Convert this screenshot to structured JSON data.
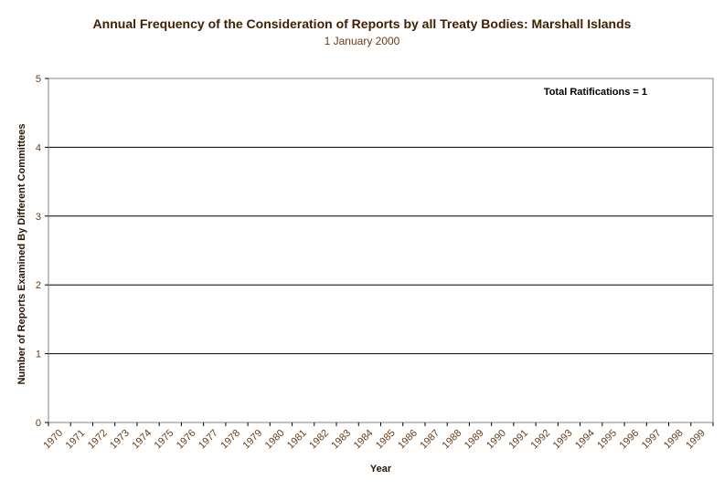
{
  "chart_data": {
    "type": "bar",
    "title": "Annual Frequency of the Consideration of Reports by all Treaty Bodies: Marshall Islands",
    "subtitle": "1 January 2000",
    "xlabel": "Year",
    "ylabel": "Number of Reports Examined By Different Committees",
    "categories": [
      "1970",
      "1971",
      "1972",
      "1973",
      "1974",
      "1975",
      "1976",
      "1977",
      "1978",
      "1979",
      "1980",
      "1981",
      "1982",
      "1983",
      "1984",
      "1985",
      "1986",
      "1987",
      "1988",
      "1989",
      "1990",
      "1991",
      "1992",
      "1993",
      "1994",
      "1995",
      "1996",
      "1997",
      "1998",
      "1999"
    ],
    "values": [
      0,
      0,
      0,
      0,
      0,
      0,
      0,
      0,
      0,
      0,
      0,
      0,
      0,
      0,
      0,
      0,
      0,
      0,
      0,
      0,
      0,
      0,
      0,
      0,
      0,
      0,
      0,
      0,
      0,
      0
    ],
    "ylim": [
      0,
      5
    ],
    "yticks": [
      "0",
      "1",
      "2",
      "3",
      "4",
      "5"
    ],
    "grid": true,
    "annotation": "Total Ratifications = 1",
    "colors": {
      "text": "#6b3a10",
      "title": "#3f1f00",
      "grid": "#000000"
    }
  }
}
